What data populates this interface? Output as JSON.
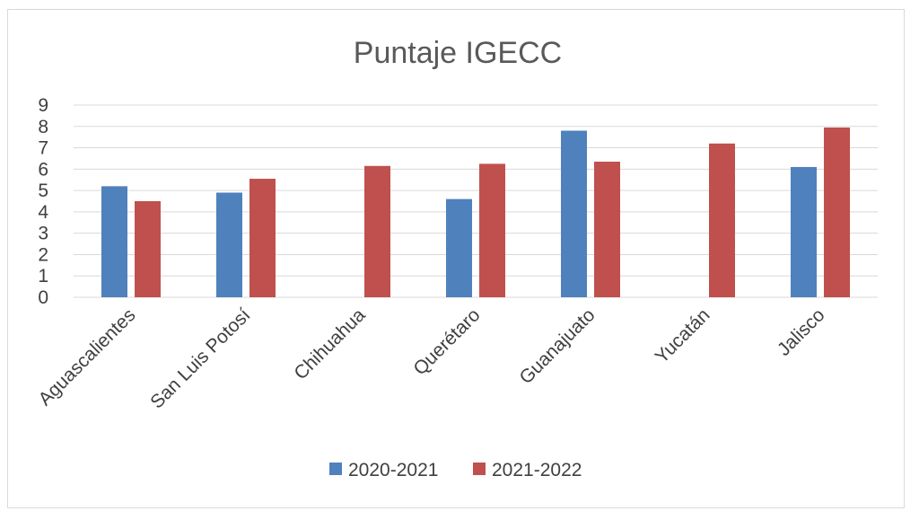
{
  "chart_data": {
    "type": "bar",
    "title": "Puntaje IGECC",
    "xlabel": "",
    "ylabel": "",
    "categories": [
      "Aguascalientes",
      "San Luis Potosí",
      "Chihuahua",
      "Querétaro",
      "Guanajuato",
      "Yucatán",
      "Jalisco"
    ],
    "series": [
      {
        "name": "2020-2021",
        "color": "#4f81bd",
        "values": [
          5.2,
          4.9,
          null,
          4.6,
          7.8,
          null,
          6.1
        ]
      },
      {
        "name": "2021-2022",
        "color": "#c0504d",
        "values": [
          4.5,
          5.55,
          6.15,
          6.25,
          6.35,
          7.2,
          7.95
        ]
      }
    ],
    "ylim": [
      0,
      9
    ],
    "yticks": [
      0,
      1,
      2,
      3,
      4,
      5,
      6,
      7,
      8,
      9
    ],
    "grid": true,
    "legend_position": "bottom"
  }
}
